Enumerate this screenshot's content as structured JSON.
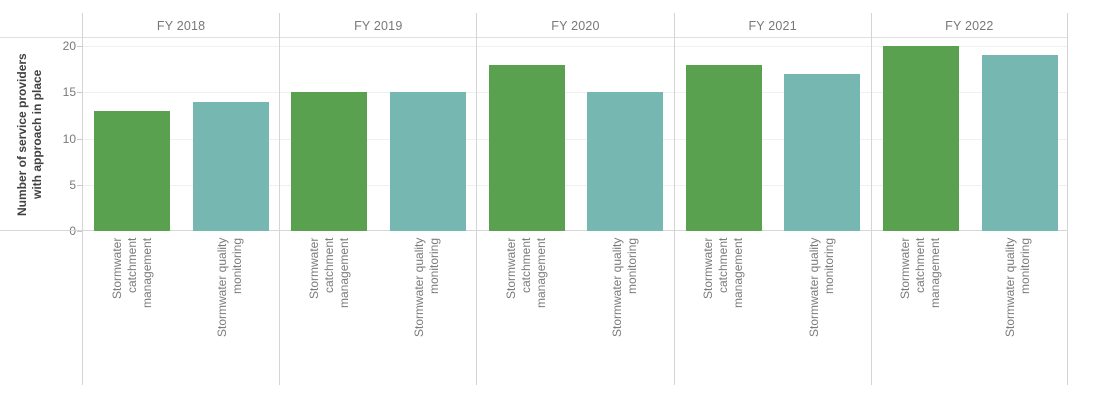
{
  "chart_data": {
    "type": "bar",
    "title": "",
    "ylabel": "Number of service providers\nwith approach in place",
    "xlabel": "",
    "ylim": [
      0,
      20
    ],
    "yticks": [
      0,
      5,
      10,
      15,
      20
    ],
    "grid": true,
    "legend_position": "none",
    "panels": [
      "FY 2018",
      "FY 2019",
      "FY 2020",
      "FY 2021",
      "FY 2022"
    ],
    "categories": [
      "Stormwater\ncatchment\nmanagement",
      "Stormwater quality\nmonitoring"
    ],
    "series": [
      {
        "name": "Stormwater catchment management",
        "color": "#59A14F",
        "values": [
          13,
          15,
          18,
          18,
          20
        ]
      },
      {
        "name": "Stormwater quality monitoring",
        "color": "#76B7B2",
        "values": [
          14,
          15,
          15,
          17,
          19
        ]
      }
    ]
  },
  "colors": {
    "bar_green": "#59A14F",
    "bar_teal": "#76B7B2",
    "text_gray": "#787878",
    "axis_title_dark": "#414141",
    "divider_gray": "#d4d4d4",
    "gridline_gray": "#f0f0f0"
  }
}
